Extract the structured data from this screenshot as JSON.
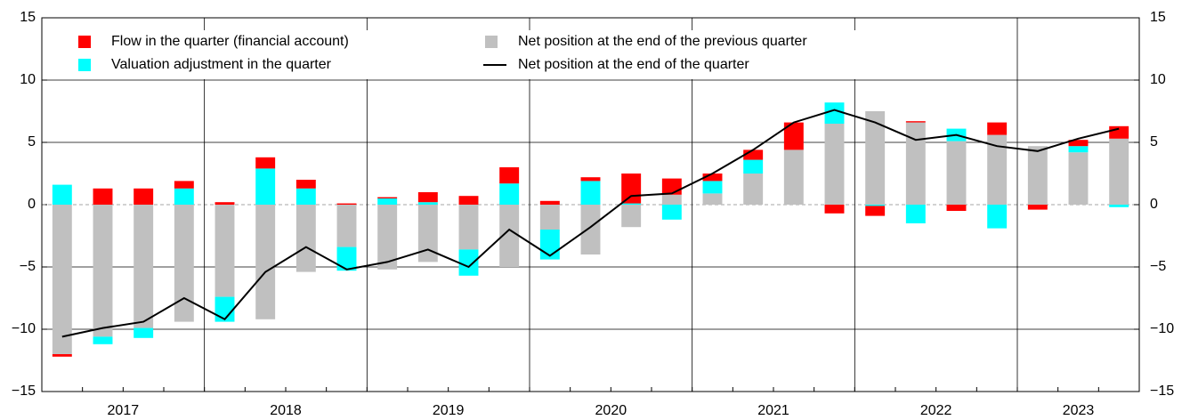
{
  "chart_data": {
    "type": "stacked_bar_line",
    "categories": [
      null,
      null,
      null,
      null,
      null,
      null,
      null,
      null,
      null,
      null,
      null,
      null,
      null,
      null,
      null,
      null,
      null,
      null,
      null,
      null,
      null,
      null,
      null,
      null,
      null,
      null,
      null
    ],
    "year_labels": [
      "2017",
      "2018",
      "2019",
      "2020",
      "2021",
      "2022",
      "2023"
    ],
    "series": [
      {
        "name": "Net position at the end of the previous quarter",
        "color": "#c0c0c0",
        "kind": "bar",
        "values": [
          -12.0,
          -10.6,
          -9.9,
          -9.4,
          -7.4,
          -9.2,
          -5.4,
          -3.4,
          -5.2,
          -4.6,
          -3.6,
          -5.0,
          -2.0,
          -4.0,
          -1.8,
          0.8,
          0.9,
          2.5,
          4.4,
          6.5,
          7.5,
          6.6,
          5.1,
          5.6,
          4.7,
          4.2,
          5.3
        ]
      },
      {
        "name": "Valuation adjustment in the quarter",
        "color": "#00ffff",
        "kind": "bar",
        "values": [
          1.6,
          -0.6,
          -0.8,
          1.3,
          -2.0,
          2.9,
          1.3,
          -1.9,
          0.5,
          0.2,
          -2.1,
          1.7,
          -2.4,
          1.9,
          0.1,
          -1.2,
          1.0,
          1.1,
          0.0,
          1.7,
          -0.1,
          -1.5,
          1.0,
          -1.9,
          0.0,
          0.5,
          -0.2
        ]
      },
      {
        "name": "Flow in the quarter (financial account)",
        "color": "#ff0000",
        "kind": "bar",
        "values": [
          -0.2,
          1.3,
          1.3,
          0.6,
          0.2,
          0.9,
          0.7,
          0.1,
          0.1,
          0.8,
          0.7,
          1.3,
          0.3,
          0.3,
          2.4,
          1.3,
          0.6,
          0.8,
          2.2,
          -0.7,
          -0.8,
          0.1,
          -0.5,
          1.0,
          -0.4,
          0.5,
          1.0
        ]
      },
      {
        "name": "Net position at the end of the quarter",
        "color": "#000000",
        "kind": "line",
        "values": [
          -10.6,
          -9.9,
          -9.4,
          -7.5,
          -9.2,
          -5.4,
          -3.4,
          -5.2,
          -4.6,
          -3.6,
          -5.0,
          -2.0,
          -4.1,
          -1.8,
          0.7,
          0.9,
          2.5,
          4.4,
          6.6,
          7.6,
          6.6,
          5.2,
          5.6,
          4.7,
          4.3,
          5.3,
          6.1
        ]
      }
    ],
    "ylim": [
      -15,
      15
    ],
    "yticks": [
      {
        "value": -15,
        "label": "−15"
      },
      {
        "value": -10,
        "label": "−10"
      },
      {
        "value": -5,
        "label": "−5"
      },
      0,
      5,
      10,
      15
    ],
    "y2lim": [
      -15,
      15
    ],
    "y2ticks": [
      {
        "value": -15,
        "label": "−15"
      },
      {
        "value": -10,
        "label": "−10"
      },
      {
        "value": -5,
        "label": "−5"
      },
      0,
      5,
      10,
      15
    ],
    "grid": true
  }
}
